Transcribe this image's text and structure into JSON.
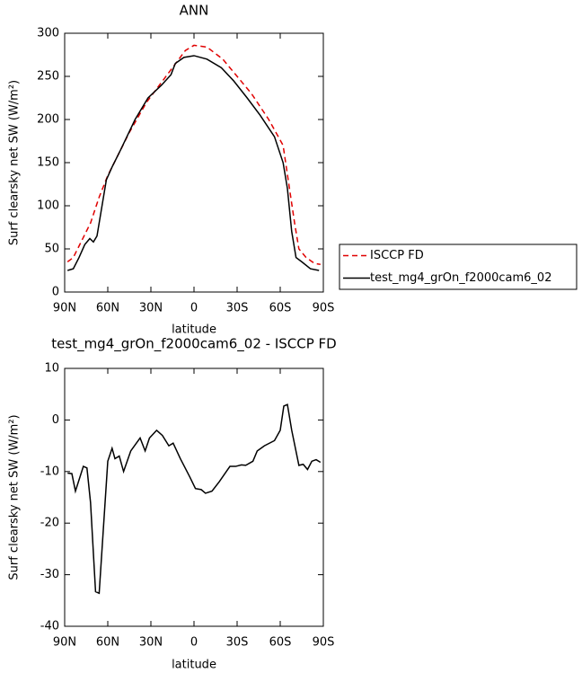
{
  "chart_data": [
    {
      "type": "line",
      "title": "ANN",
      "xlabel": "latitude",
      "ylabel": "Surf clearsky net SW (W/m²)",
      "xlim": [
        90,
        -90
      ],
      "xticks": [
        {
          "value": 90,
          "label": "90N"
        },
        {
          "value": 60,
          "label": "60N"
        },
        {
          "value": 30,
          "label": "30N"
        },
        0,
        {
          "value": -30,
          "label": "30S"
        },
        {
          "value": -60,
          "label": "60S"
        },
        {
          "value": -90,
          "label": "90S"
        }
      ],
      "ylim": [
        0,
        300
      ],
      "yticks": [
        0,
        50,
        100,
        150,
        200,
        250,
        300
      ],
      "legend": "right",
      "series": [
        {
          "name": "ISCCP FD",
          "color": "#e00000",
          "dash": true,
          "x": [
            88,
            84,
            78,
            72,
            66,
            60,
            54,
            45,
            33,
            24,
            15,
            6,
            0,
            -9,
            -20,
            -30,
            -40,
            -52,
            -62,
            -66,
            -70,
            -73,
            -78,
            -84,
            -88
          ],
          "values": [
            35,
            40,
            60,
            80,
            110,
            135,
            155,
            185,
            220,
            240,
            260,
            280,
            286,
            284,
            270,
            250,
            230,
            200,
            170,
            125,
            80,
            50,
            40,
            33,
            32
          ]
        },
        {
          "name": "test_mg4_grOn_f2000cam6_02",
          "color": "#000000",
          "dash": false,
          "x": [
            88,
            84,
            80,
            76,
            72.5,
            70,
            67.5,
            65,
            61,
            57,
            51,
            41,
            32,
            22.5,
            16,
            13,
            7,
            0,
            -9,
            -19,
            -27.5,
            -37,
            -46,
            -56,
            -62,
            -65,
            -68,
            -71,
            -75,
            -81,
            -87
          ],
          "values": [
            25,
            27,
            40,
            55,
            62,
            58,
            65,
            90,
            130,
            145,
            165,
            200,
            225,
            240,
            252,
            265,
            272,
            274,
            270,
            260,
            245,
            225,
            205,
            180,
            150,
            120,
            70,
            40,
            35,
            27,
            25
          ]
        }
      ]
    },
    {
      "type": "line",
      "title": "test_mg4_grOn_f2000cam6_02 - ISCCP FD",
      "xlabel": "latitude",
      "ylabel": "Surf clearsky net SW (W/m²)",
      "xlim": [
        90,
        -90
      ],
      "xticks": [
        {
          "value": 90,
          "label": "90N"
        },
        {
          "value": 60,
          "label": "60N"
        },
        {
          "value": 30,
          "label": "30N"
        },
        0,
        {
          "value": -30,
          "label": "30S"
        },
        {
          "value": -60,
          "label": "60S"
        },
        {
          "value": -90,
          "label": "90S"
        }
      ],
      "ylim": [
        -40,
        10
      ],
      "yticks": [
        -40,
        -30,
        -20,
        -10,
        0,
        10
      ],
      "color": "#000000",
      "x": [
        88,
        85,
        82.5,
        77,
        74.5,
        72,
        68.5,
        66,
        60,
        57,
        55,
        52,
        49,
        44,
        37.5,
        34,
        31,
        26,
        22,
        17.5,
        14.5,
        9.5,
        3,
        -1,
        -5,
        -8,
        -12.5,
        -17.5,
        -25,
        -29,
        -33,
        -36,
        -41,
        -44,
        -49,
        -56,
        -60,
        -62.5,
        -65,
        -68,
        -73,
        -76,
        -79,
        -82,
        -85,
        -88
      ],
      "values": [
        -10.3,
        -10.4,
        -13.8,
        -9,
        -9.3,
        -16,
        -33.3,
        -33.6,
        -8,
        -5.5,
        -7.5,
        -7,
        -10,
        -6,
        -3.5,
        -6,
        -3.5,
        -2,
        -3,
        -5,
        -4.5,
        -7.5,
        -11,
        -13.3,
        -13.5,
        -14.2,
        -13.8,
        -12,
        -9,
        -9,
        -8.7,
        -8.8,
        -8,
        -6,
        -5,
        -4,
        -2,
        2.7,
        3,
        -2,
        -8.8,
        -8.6,
        -9.6,
        -8,
        -7.7,
        -8.2
      ]
    }
  ]
}
